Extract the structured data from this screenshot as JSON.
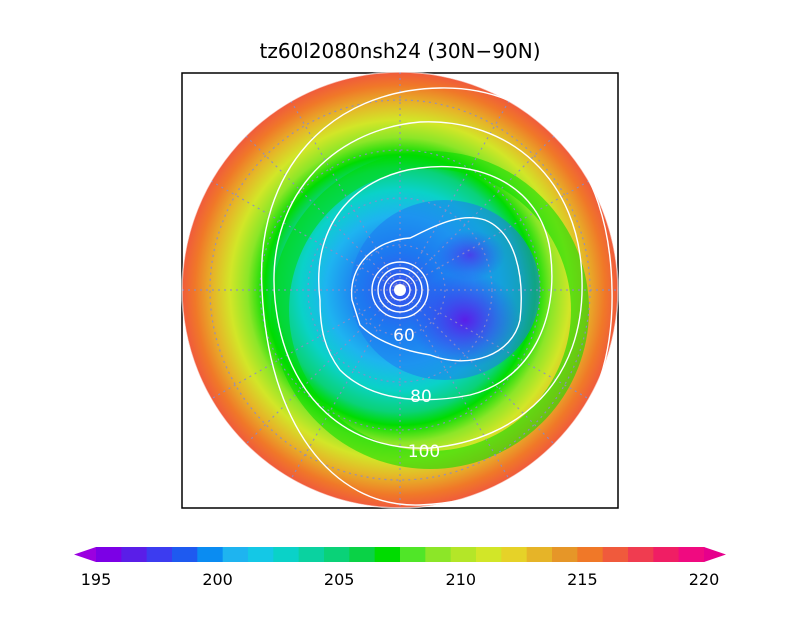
{
  "title": "tz60l2080nsh24 (30N−90N)",
  "domain": {
    "region": "30N−90N",
    "projection": "north-polar-stereographic"
  },
  "contour_labels": [
    "60",
    "80",
    "100"
  ],
  "colorbar": {
    "ticks": [
      "195",
      "200",
      "205",
      "210",
      "215",
      "220"
    ],
    "min": 195,
    "max": 220,
    "step": 1.25,
    "colors": [
      "#9b00e0",
      "#7c00e6",
      "#5a1ee8",
      "#3c3cf0",
      "#1e5af0",
      "#0a8cf2",
      "#1eb4f0",
      "#14c8e6",
      "#0ad2c8",
      "#0ad2a0",
      "#0ad278",
      "#0ad246",
      "#00dc00",
      "#50e628",
      "#8ce628",
      "#b4e628",
      "#d2e628",
      "#e6d228",
      "#e6b428",
      "#e69628",
      "#f07828",
      "#f05a3c",
      "#f03c50",
      "#f01e64",
      "#f00a80",
      "#e6008c"
    ],
    "extend": "both"
  },
  "map_fill_colors": {
    "outer": "#f0503c",
    "mid": "#e6b428",
    "green": "#00dc00",
    "cyan": "#0ad2c8",
    "blue": "#1e78f0",
    "core": "#5a1ee8"
  }
}
